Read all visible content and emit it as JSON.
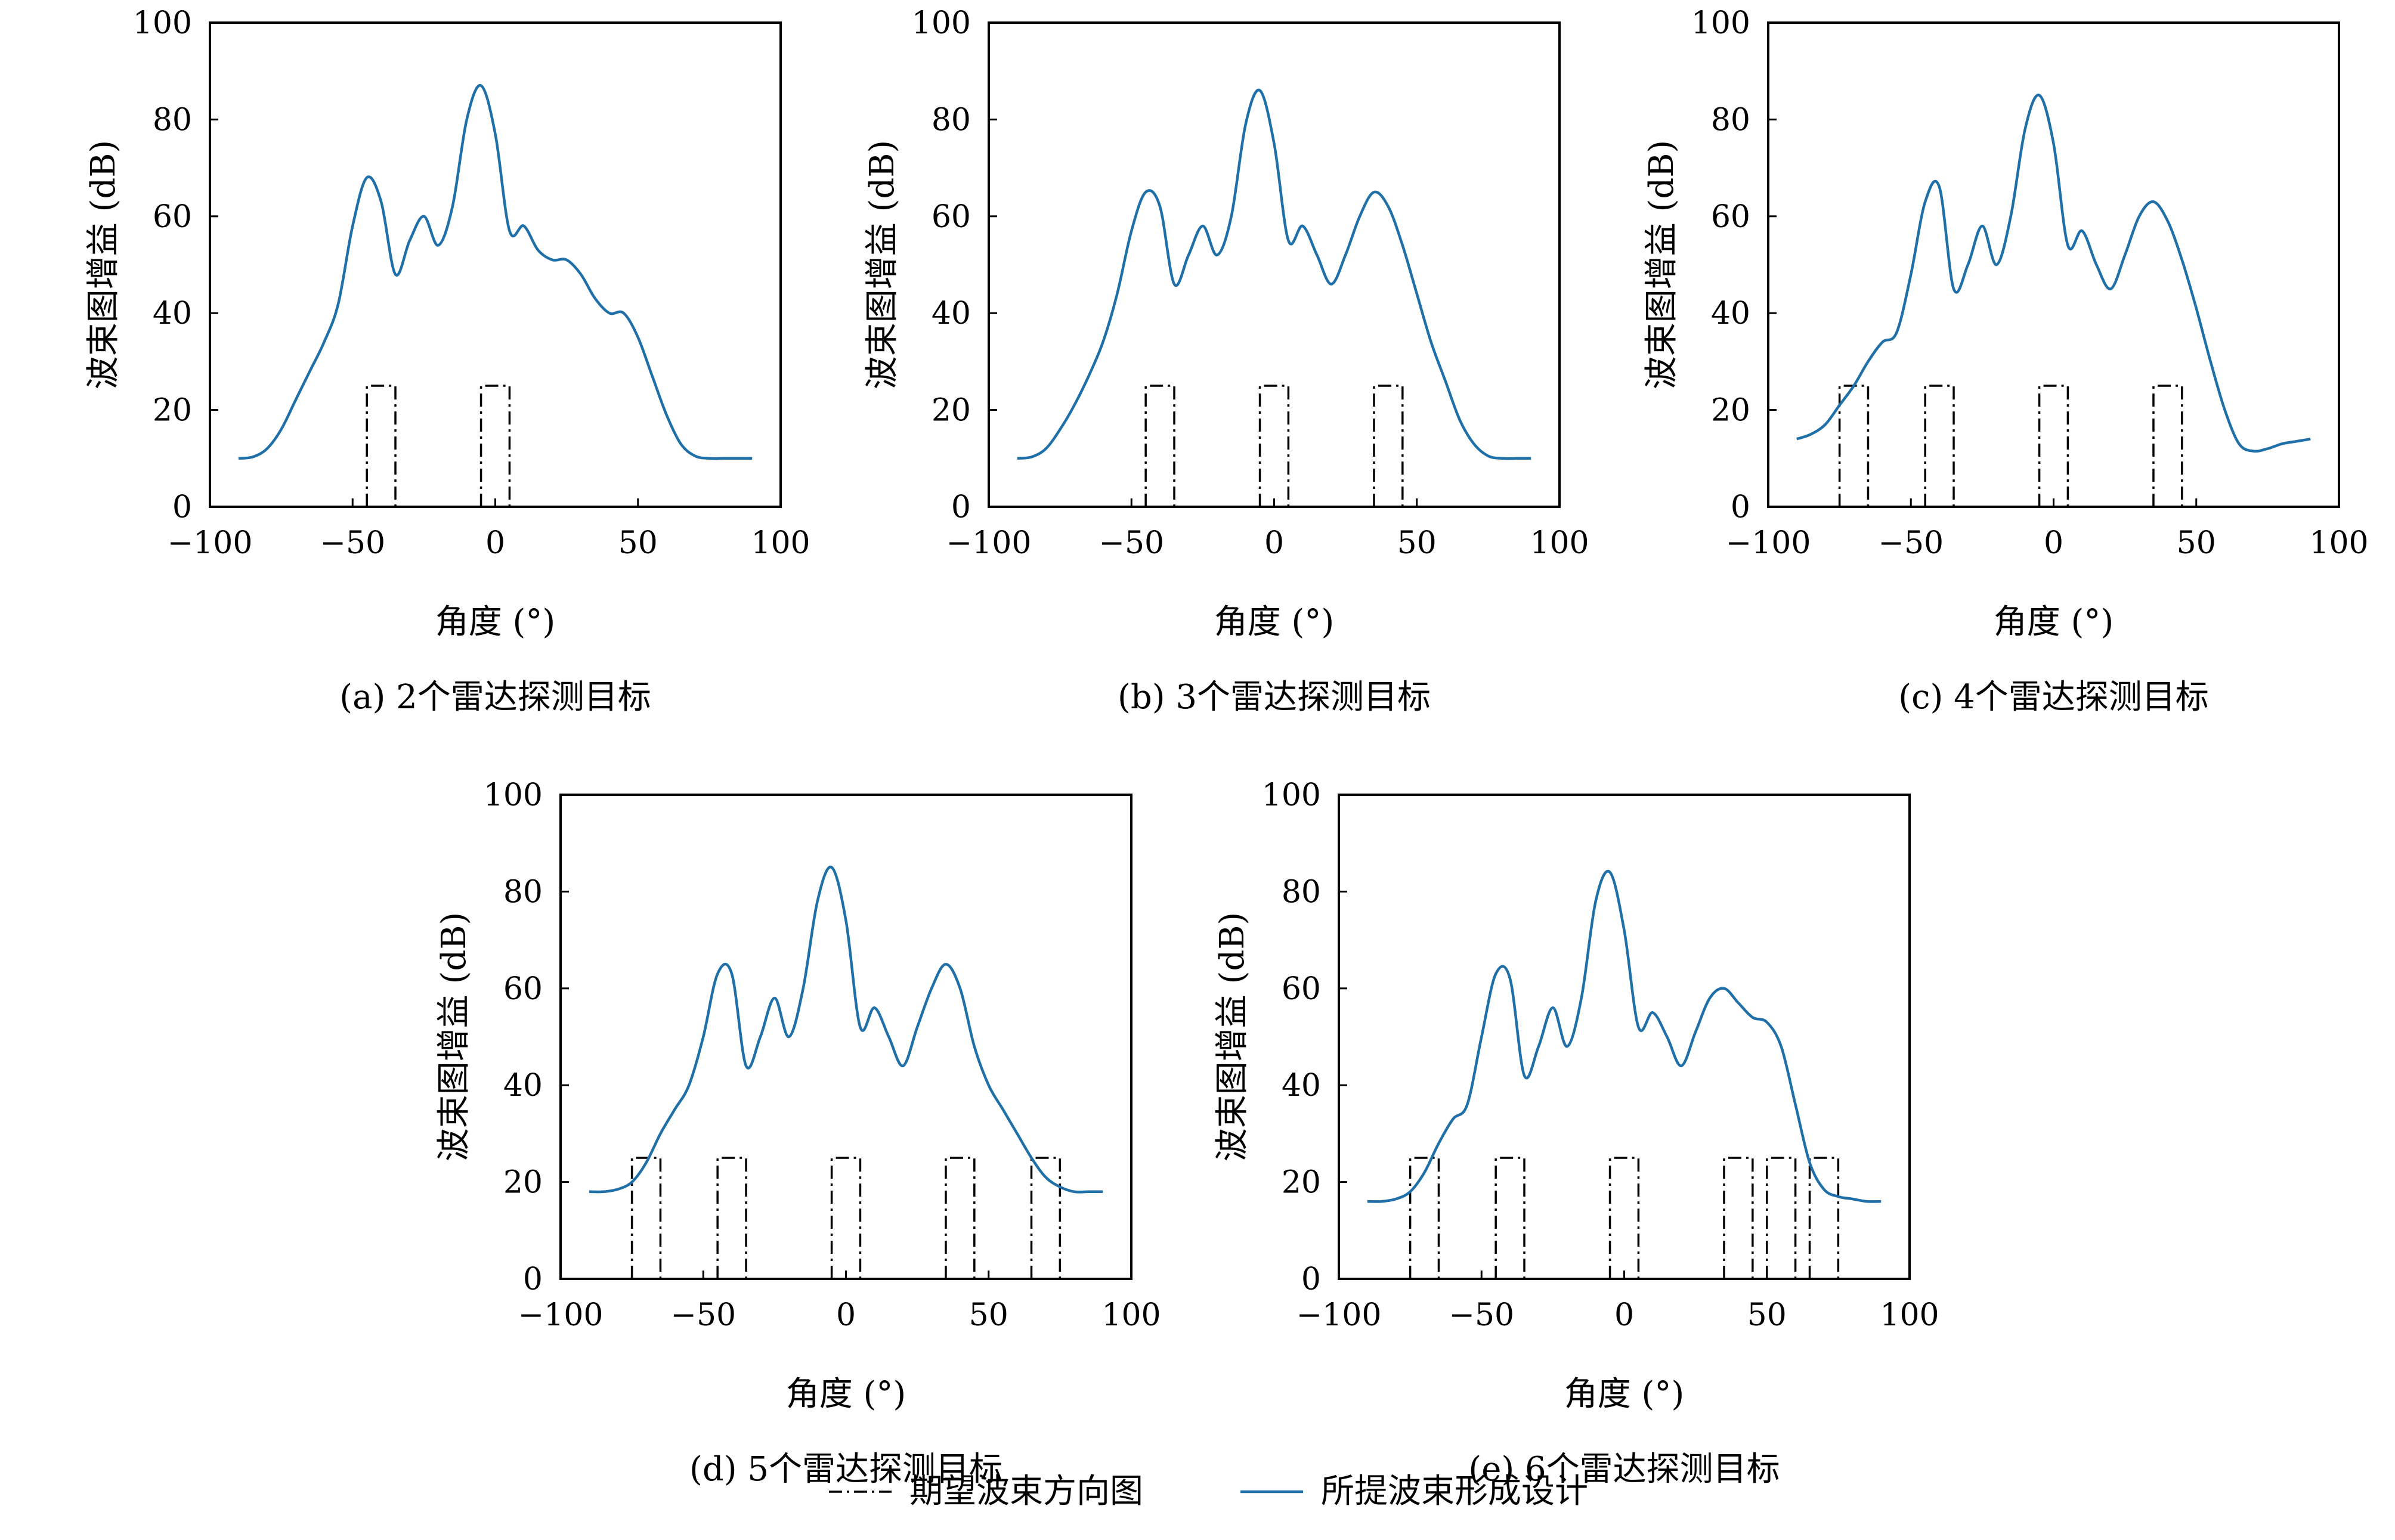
{
  "legend": {
    "items": [
      {
        "label": "期望波束方向图",
        "style": "dashdot",
        "color": "#000000"
      },
      {
        "label": "所提波束形成设计",
        "style": "solid",
        "color": "#1f6fa8"
      }
    ]
  },
  "colors": {
    "beam": "#1f6fa8",
    "desired": "#000000",
    "axis": "#000000"
  },
  "chart_data": [
    {
      "type": "line",
      "caption": "(a) 2个雷达探测目标",
      "xlabel": "角度 (°)",
      "ylabel": "波束图增益 (dB)",
      "xlim": [
        -100,
        100
      ],
      "ylim": [
        0,
        100
      ],
      "xticks": [
        -100,
        -50,
        0,
        50,
        100
      ],
      "xtick_labels": [
        "−100",
        "−50",
        "0",
        "50",
        "100"
      ],
      "yticks": [
        0,
        20,
        40,
        60,
        80,
        100
      ],
      "ytick_labels": [
        "0",
        "20",
        "40",
        "60",
        "80",
        "100"
      ],
      "grid": false,
      "desired_pattern": {
        "name": "期望波束方向图",
        "mainlobes": [
          [
            -45,
            -35
          ],
          [
            -5,
            5
          ]
        ],
        "level": 25
      },
      "series": [
        {
          "name": "所提波束形成设计",
          "x": [
            -90,
            -85,
            -80,
            -75,
            -70,
            -65,
            -60,
            -55,
            -50,
            -45,
            -40,
            -35,
            -30,
            -25,
            -20,
            -15,
            -10,
            -5,
            0,
            5,
            10,
            15,
            20,
            25,
            30,
            35,
            40,
            45,
            50,
            55,
            60,
            65,
            70,
            75,
            80,
            85,
            90
          ],
          "y": [
            10,
            10.3,
            12,
            16,
            22,
            28,
            34,
            42,
            58,
            68,
            63,
            48,
            55,
            60,
            54,
            62,
            80,
            87,
            77,
            57,
            58,
            53,
            51,
            51,
            48,
            43,
            40,
            40,
            35,
            27,
            19,
            13,
            10.5,
            10,
            10,
            10,
            10
          ]
        }
      ]
    },
    {
      "type": "line",
      "caption": "(b) 3个雷达探测目标",
      "xlabel": "角度 (°)",
      "ylabel": "波束图增益 (dB)",
      "xlim": [
        -100,
        100
      ],
      "ylim": [
        0,
        100
      ],
      "xticks": [
        -100,
        -50,
        0,
        50,
        100
      ],
      "xtick_labels": [
        "−100",
        "−50",
        "0",
        "50",
        "100"
      ],
      "yticks": [
        0,
        20,
        40,
        60,
        80,
        100
      ],
      "ytick_labels": [
        "0",
        "20",
        "40",
        "60",
        "80",
        "100"
      ],
      "grid": false,
      "desired_pattern": {
        "name": "期望波束方向图",
        "mainlobes": [
          [
            -45,
            -35
          ],
          [
            -5,
            5
          ],
          [
            35,
            45
          ]
        ],
        "level": 25
      },
      "series": [
        {
          "name": "所提波束形成设计",
          "x": [
            -90,
            -85,
            -80,
            -75,
            -70,
            -65,
            -60,
            -55,
            -50,
            -45,
            -40,
            -35,
            -30,
            -25,
            -20,
            -15,
            -10,
            -5,
            0,
            5,
            10,
            15,
            20,
            25,
            30,
            35,
            40,
            45,
            50,
            55,
            60,
            65,
            70,
            75,
            80,
            85,
            90
          ],
          "y": [
            10,
            10.3,
            12,
            16,
            21,
            27,
            34,
            44,
            57,
            65,
            62,
            46,
            52,
            58,
            52,
            60,
            79,
            86,
            75,
            55,
            58,
            52,
            46,
            52,
            60,
            65,
            62,
            54,
            44,
            34,
            26,
            18,
            13,
            10.5,
            10,
            10,
            10
          ]
        }
      ]
    },
    {
      "type": "line",
      "caption": "(c) 4个雷达探测目标",
      "xlabel": "角度 (°)",
      "ylabel": "波束图增益 (dB)",
      "xlim": [
        -100,
        100
      ],
      "ylim": [
        0,
        100
      ],
      "xticks": [
        -100,
        -50,
        0,
        50,
        100
      ],
      "xtick_labels": [
        "−100",
        "−50",
        "0",
        "50",
        "100"
      ],
      "yticks": [
        0,
        20,
        40,
        60,
        80,
        100
      ],
      "ytick_labels": [
        "0",
        "20",
        "40",
        "60",
        "80",
        "100"
      ],
      "grid": false,
      "desired_pattern": {
        "name": "期望波束方向图",
        "mainlobes": [
          [
            -75,
            -65
          ],
          [
            -45,
            -35
          ],
          [
            -5,
            5
          ],
          [
            35,
            45
          ]
        ],
        "level": 25
      },
      "series": [
        {
          "name": "所提波束形成设计",
          "x": [
            -90,
            -85,
            -80,
            -75,
            -70,
            -65,
            -60,
            -55,
            -50,
            -45,
            -40,
            -35,
            -30,
            -25,
            -20,
            -15,
            -10,
            -5,
            0,
            5,
            10,
            15,
            20,
            25,
            30,
            35,
            40,
            45,
            50,
            55,
            60,
            65,
            70,
            75,
            80,
            85,
            90
          ],
          "y": [
            14,
            15,
            17,
            21,
            25,
            30,
            34,
            36,
            48,
            63,
            66,
            45,
            50,
            58,
            50,
            60,
            78,
            85,
            75,
            54,
            57,
            50,
            45,
            52,
            60,
            63,
            59,
            51,
            41,
            30,
            20,
            13,
            11.5,
            12,
            13,
            13.5,
            14
          ]
        }
      ]
    },
    {
      "type": "line",
      "caption": "(d) 5个雷达探测目标",
      "xlabel": "角度 (°)",
      "ylabel": "波束图增益 (dB)",
      "xlim": [
        -100,
        100
      ],
      "ylim": [
        0,
        100
      ],
      "xticks": [
        -100,
        -50,
        0,
        50,
        100
      ],
      "xtick_labels": [
        "−100",
        "−50",
        "0",
        "50",
        "100"
      ],
      "yticks": [
        0,
        20,
        40,
        60,
        80,
        100
      ],
      "ytick_labels": [
        "0",
        "20",
        "40",
        "60",
        "80",
        "100"
      ],
      "grid": false,
      "desired_pattern": {
        "name": "期望波束方向图",
        "mainlobes": [
          [
            -75,
            -65
          ],
          [
            -45,
            -35
          ],
          [
            -5,
            5
          ],
          [
            35,
            45
          ],
          [
            65,
            75
          ]
        ],
        "level": 25
      },
      "series": [
        {
          "name": "所提波束形成设计",
          "x": [
            -90,
            -85,
            -80,
            -75,
            -70,
            -65,
            -60,
            -55,
            -50,
            -45,
            -40,
            -35,
            -30,
            -25,
            -20,
            -15,
            -10,
            -5,
            0,
            5,
            10,
            15,
            20,
            25,
            30,
            35,
            40,
            45,
            50,
            55,
            60,
            65,
            70,
            75,
            80,
            85,
            90
          ],
          "y": [
            18,
            18,
            18.5,
            20,
            24,
            30,
            35,
            40,
            50,
            63,
            63,
            44,
            50,
            58,
            50,
            60,
            78,
            85,
            74,
            52,
            56,
            50,
            44,
            52,
            60,
            65,
            60,
            48,
            40,
            35,
            30,
            25,
            21,
            19,
            18,
            18,
            18
          ]
        }
      ]
    },
    {
      "type": "line",
      "caption": "(e) 6个雷达探测目标",
      "xlabel": "角度 (°)",
      "ylabel": "波束图增益 (dB)",
      "xlim": [
        -100,
        100
      ],
      "ylim": [
        0,
        100
      ],
      "xticks": [
        -100,
        -50,
        0,
        50,
        100
      ],
      "xtick_labels": [
        "−100",
        "−50",
        "0",
        "50",
        "100"
      ],
      "yticks": [
        0,
        20,
        40,
        60,
        80,
        100
      ],
      "ytick_labels": [
        "0",
        "20",
        "40",
        "60",
        "80",
        "100"
      ],
      "grid": false,
      "desired_pattern": {
        "name": "期望波束方向图",
        "mainlobes": [
          [
            -75,
            -65
          ],
          [
            -45,
            -35
          ],
          [
            -5,
            5
          ],
          [
            35,
            45
          ],
          [
            50,
            60
          ],
          [
            65,
            75
          ]
        ],
        "level": 25
      },
      "series": [
        {
          "name": "所提波束形成设计",
          "x": [
            -90,
            -85,
            -80,
            -75,
            -70,
            -65,
            -60,
            -55,
            -50,
            -45,
            -40,
            -35,
            -30,
            -25,
            -20,
            -15,
            -10,
            -5,
            0,
            5,
            10,
            15,
            20,
            25,
            30,
            35,
            40,
            45,
            50,
            55,
            60,
            65,
            70,
            75,
            80,
            85,
            90
          ],
          "y": [
            16,
            16,
            16.5,
            18,
            22,
            28,
            33,
            36,
            50,
            63,
            62,
            42,
            48,
            56,
            48,
            58,
            78,
            84,
            72,
            52,
            55,
            50,
            44,
            51,
            58,
            60,
            57,
            54,
            53,
            48,
            36,
            24,
            18.5,
            17,
            16.5,
            16,
            16
          ]
        }
      ]
    }
  ]
}
